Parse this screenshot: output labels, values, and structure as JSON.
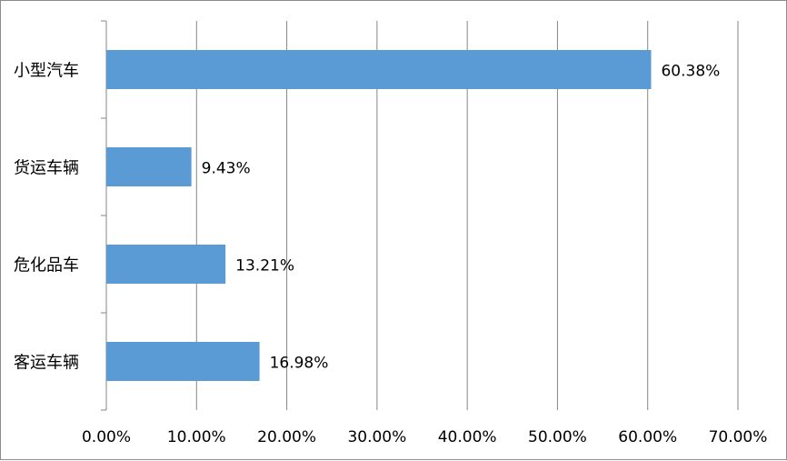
{
  "chart_data": {
    "type": "bar",
    "orientation": "horizontal",
    "categories": [
      "小型汽车",
      "货运车辆",
      "危化品车",
      "客运车辆"
    ],
    "values": [
      60.38,
      9.43,
      13.21,
      16.98
    ],
    "data_labels": [
      "60.38%",
      "9.43%",
      "13.21%",
      "16.98%"
    ],
    "x_ticks": [
      "0.00%",
      "10.00%",
      "20.00%",
      "30.00%",
      "40.00%",
      "50.00%",
      "60.00%",
      "70.00%"
    ],
    "xlim": [
      0,
      70
    ],
    "grid": "vertical",
    "legend": "none",
    "title": "",
    "xlabel": "",
    "ylabel": "",
    "bar_color": "#5b9bd5",
    "grid_color": "#868686"
  }
}
